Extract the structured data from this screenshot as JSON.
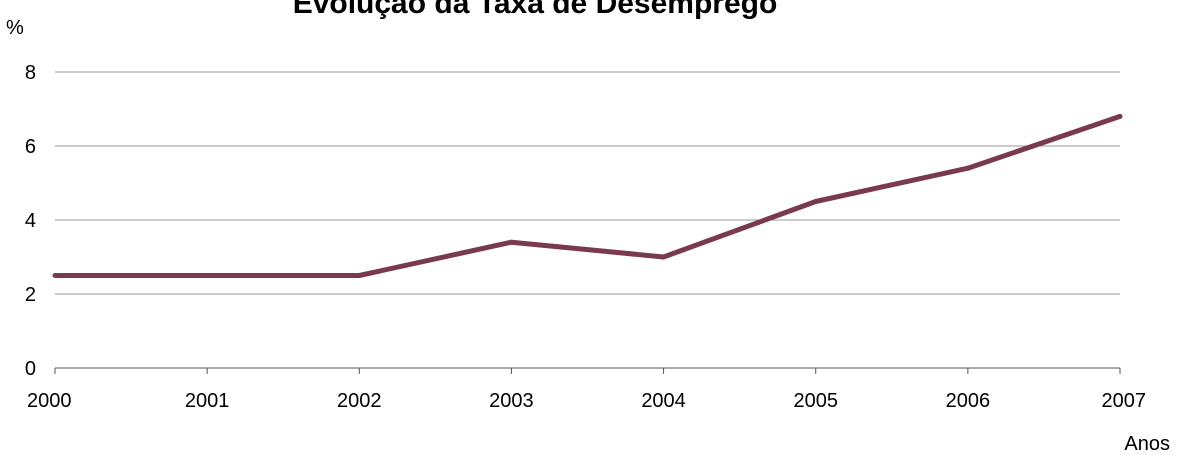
{
  "chart_data": {
    "type": "line",
    "title": "Evolução da Taxa de Desemprego",
    "ylabel": "%",
    "xlabel": "Anos",
    "categories": [
      "2000",
      "2001",
      "2002",
      "2003",
      "2004",
      "2005",
      "2006",
      "2007"
    ],
    "x_tick_labels": [
      "2000",
      "2001",
      "2002",
      "2003",
      "2004",
      "2005",
      "2006",
      "2007"
    ],
    "y_tick_labels": [
      "0",
      "2",
      "4",
      "6",
      "8"
    ],
    "yticks": [
      0,
      2,
      4,
      6,
      8
    ],
    "ylim": [
      0,
      8
    ],
    "grid": "horizontal",
    "legend": "none",
    "series": [
      {
        "values": [
          2.5,
          2.5,
          2.5,
          3.4,
          3.0,
          4.5,
          5.4,
          6.8
        ],
        "color": "#7a3a4d"
      }
    ],
    "colors": {
      "gridline": "#999999",
      "axis": "#555555"
    }
  }
}
